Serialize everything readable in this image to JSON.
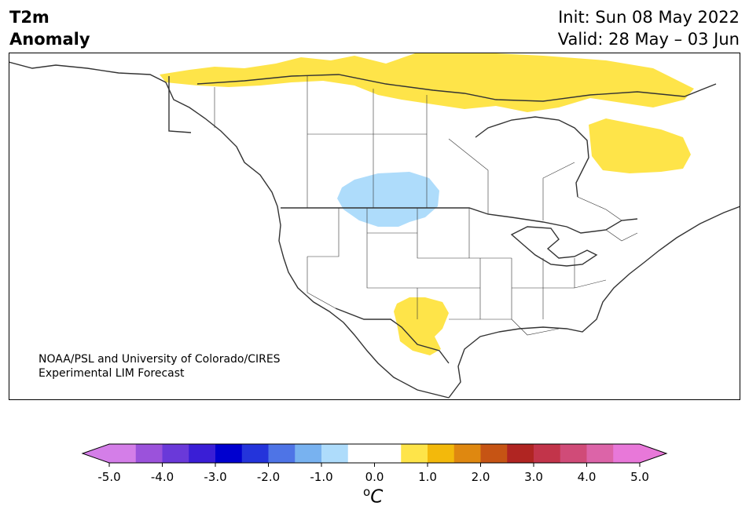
{
  "header": {
    "title_line1": "T2m",
    "title_line2": "Anomaly",
    "init_label": "Init: Sun 08 May 2022",
    "valid_label": "Valid: 28 May – 03 Jun"
  },
  "credit": {
    "line1": "NOAA/PSL and University of Colorado/CIRES",
    "line2": "Experimental LIM Forecast"
  },
  "colorbar": {
    "unit_base": "C",
    "unit_sup": "o",
    "ticks": [
      "-5.0",
      "-4.0",
      "-3.0",
      "-2.0",
      "-1.0",
      "0.0",
      "1.0",
      "2.0",
      "3.0",
      "4.0",
      "5.0"
    ],
    "colors": [
      "#d47ee8",
      "#9b52db",
      "#6a39d9",
      "#3a1ed6",
      "#0000cf",
      "#2434db",
      "#4e74e6",
      "#78b2f0",
      "#aedcfb",
      "#ffffff",
      "#ffffff",
      "#fee449",
      "#f3b90b",
      "#df8810",
      "#c65414",
      "#b02522",
      "#c2344a",
      "#d04b78",
      "#dc64a8",
      "#e878d9"
    ],
    "min_color": "#d47ee8",
    "max_color": "#e878d9"
  },
  "anomaly_colors": {
    "warm": "#fee449",
    "cool": "#aedcfb"
  }
}
